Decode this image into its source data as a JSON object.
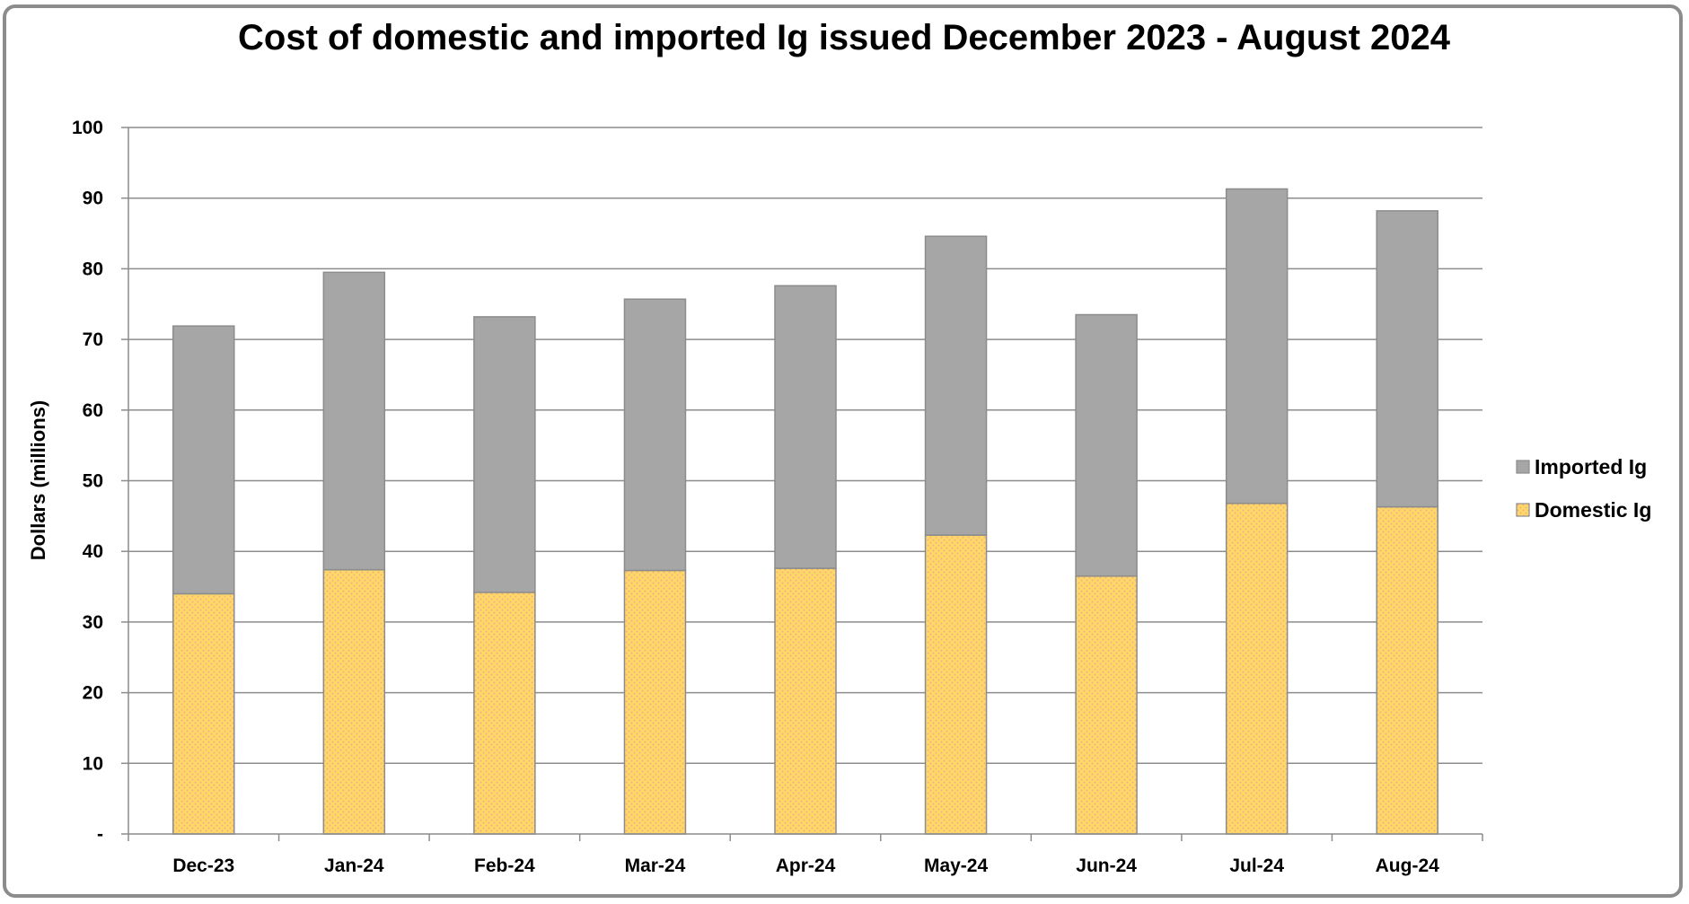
{
  "chart_data": {
    "type": "bar",
    "stacked": true,
    "title": "Cost of domestic and imported Ig issued December 2023 - August 2024",
    "xlabel": "",
    "ylabel": "Dollars (millions)",
    "ylim": [
      0,
      100
    ],
    "y_ticks": [
      0,
      10,
      20,
      30,
      40,
      50,
      60,
      70,
      80,
      90,
      100
    ],
    "y_tick_labels": [
      "-",
      "10",
      "20",
      "30",
      "40",
      "50",
      "60",
      "70",
      "80",
      "90",
      "100"
    ],
    "grid": true,
    "legend_position": "right",
    "categories": [
      "Dec-23",
      "Jan-24",
      "Feb-24",
      "Mar-24",
      "Apr-24",
      "May-24",
      "Jun-24",
      "Jul-24",
      "Aug-24"
    ],
    "series": [
      {
        "name": "Domestic Ig",
        "color": "#ffd966",
        "pattern": "dotted",
        "values": [
          34.0,
          37.4,
          34.2,
          37.3,
          37.6,
          42.3,
          36.5,
          46.8,
          46.3
        ]
      },
      {
        "name": "Imported Ig",
        "color": "#a6a6a6",
        "values": [
          37.9,
          42.1,
          39.0,
          38.4,
          40.0,
          42.3,
          37.0,
          44.5,
          41.9
        ]
      }
    ],
    "legend_order": [
      "Imported Ig",
      "Domestic Ig"
    ]
  }
}
